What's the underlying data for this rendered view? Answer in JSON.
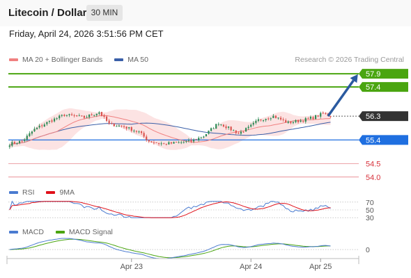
{
  "header": {
    "title": "Litecoin / Dollar",
    "timeframe": "30 MIN"
  },
  "datetime": "Friday, April 24, 2026 3:51:56 PM CET",
  "legend": {
    "ma20": "MA 20 + Bollinger Bands",
    "ma50": "MA 50",
    "credit": "Research © 2026 Trading Central"
  },
  "rsi_legend": {
    "rsi": "RSI",
    "ma": "9MA"
  },
  "macd_legend": {
    "macd": "MACD",
    "signal": "MACD Signal"
  },
  "colors": {
    "up": "#2e8b57",
    "down": "#d9534f",
    "ma20": "#f08080",
    "band": "#fcdede",
    "ma50": "#3a5fa8",
    "resistance": "#4aa510",
    "support": "#1f6fe0",
    "target": "#d7323c",
    "arrow": "#2a5aa0",
    "current": "#333333",
    "rsi": "#4a7bd0",
    "rsi_ma": "#e0101a",
    "macd": "#4a7bd0",
    "signal": "#4aa510"
  },
  "chart_data": {
    "type": "candlestick",
    "y_range": [
      53.6,
      58.4
    ],
    "x_ticks": [
      {
        "label": "Apr 23",
        "index": 49
      },
      {
        "label": "Apr 24",
        "index": 97
      },
      {
        "label": "Apr 25",
        "index": 125
      }
    ],
    "levels": [
      {
        "label": "57.9",
        "value": 57.9,
        "kind": "resistance"
      },
      {
        "label": "57.4",
        "value": 57.4,
        "kind": "resistance"
      },
      {
        "label": "56.3",
        "value": 56.3,
        "kind": "current"
      },
      {
        "label": "55.4",
        "value": 55.4,
        "kind": "support"
      },
      {
        "label": "54.5",
        "value": 54.5,
        "kind": "target"
      },
      {
        "label": "54.0",
        "value": 54.0,
        "kind": "target"
      }
    ],
    "forecast_arrow": {
      "from": {
        "index": 128,
        "value": 56.3
      },
      "to": {
        "index": 140,
        "value": 57.88
      }
    },
    "price_anchors": [
      [
        0,
        55.25
      ],
      [
        5,
        55.35
      ],
      [
        10,
        55.8
      ],
      [
        16,
        56.1
      ],
      [
        22,
        56.35
      ],
      [
        30,
        56.25
      ],
      [
        36,
        56.45
      ],
      [
        40,
        56.0
      ],
      [
        46,
        55.9
      ],
      [
        52,
        55.7
      ],
      [
        56,
        55.35
      ],
      [
        62,
        55.25
      ],
      [
        68,
        55.3
      ],
      [
        73,
        55.35
      ],
      [
        78,
        55.55
      ],
      [
        84,
        56.05
      ],
      [
        88,
        55.85
      ],
      [
        92,
        55.65
      ],
      [
        96,
        55.85
      ],
      [
        100,
        56.15
      ],
      [
        106,
        56.3
      ],
      [
        112,
        56.05
      ],
      [
        118,
        56.15
      ],
      [
        122,
        56.25
      ],
      [
        126,
        56.4
      ],
      [
        129,
        56.3
      ]
    ],
    "candle_count": 130,
    "rsi": {
      "y_range": [
        25,
        75
      ],
      "ticks": [
        70,
        50,
        30
      ]
    },
    "macd": {
      "ticks": [
        0
      ]
    }
  }
}
